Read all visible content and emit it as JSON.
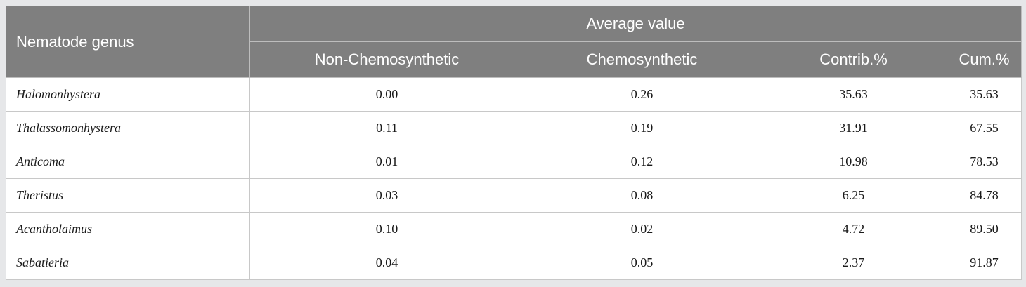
{
  "table": {
    "header": {
      "genus_label": "Nematode genus",
      "group_label": "Average value",
      "columns": [
        "Non-Chemosynthetic",
        "Chemosynthetic",
        "Contrib.%",
        "Cum.%"
      ]
    },
    "rows": [
      {
        "genus": "Halomonhystera",
        "non_chemo": "0.00",
        "chemo": "0.26",
        "contrib": "35.63",
        "cum": "35.63"
      },
      {
        "genus": "Thalassomonhystera",
        "non_chemo": "0.11",
        "chemo": "0.19",
        "contrib": "31.91",
        "cum": "67.55"
      },
      {
        "genus": "Anticoma",
        "non_chemo": "0.01",
        "chemo": "0.12",
        "contrib": "10.98",
        "cum": "78.53"
      },
      {
        "genus": "Theristus",
        "non_chemo": "0.03",
        "chemo": "0.08",
        "contrib": "6.25",
        "cum": "84.78"
      },
      {
        "genus": "Acantholaimus",
        "non_chemo": "0.10",
        "chemo": "0.02",
        "contrib": "4.72",
        "cum": "89.50"
      },
      {
        "genus": "Sabatieria",
        "non_chemo": "0.04",
        "chemo": "0.05",
        "contrib": "2.37",
        "cum": "91.87"
      }
    ]
  }
}
